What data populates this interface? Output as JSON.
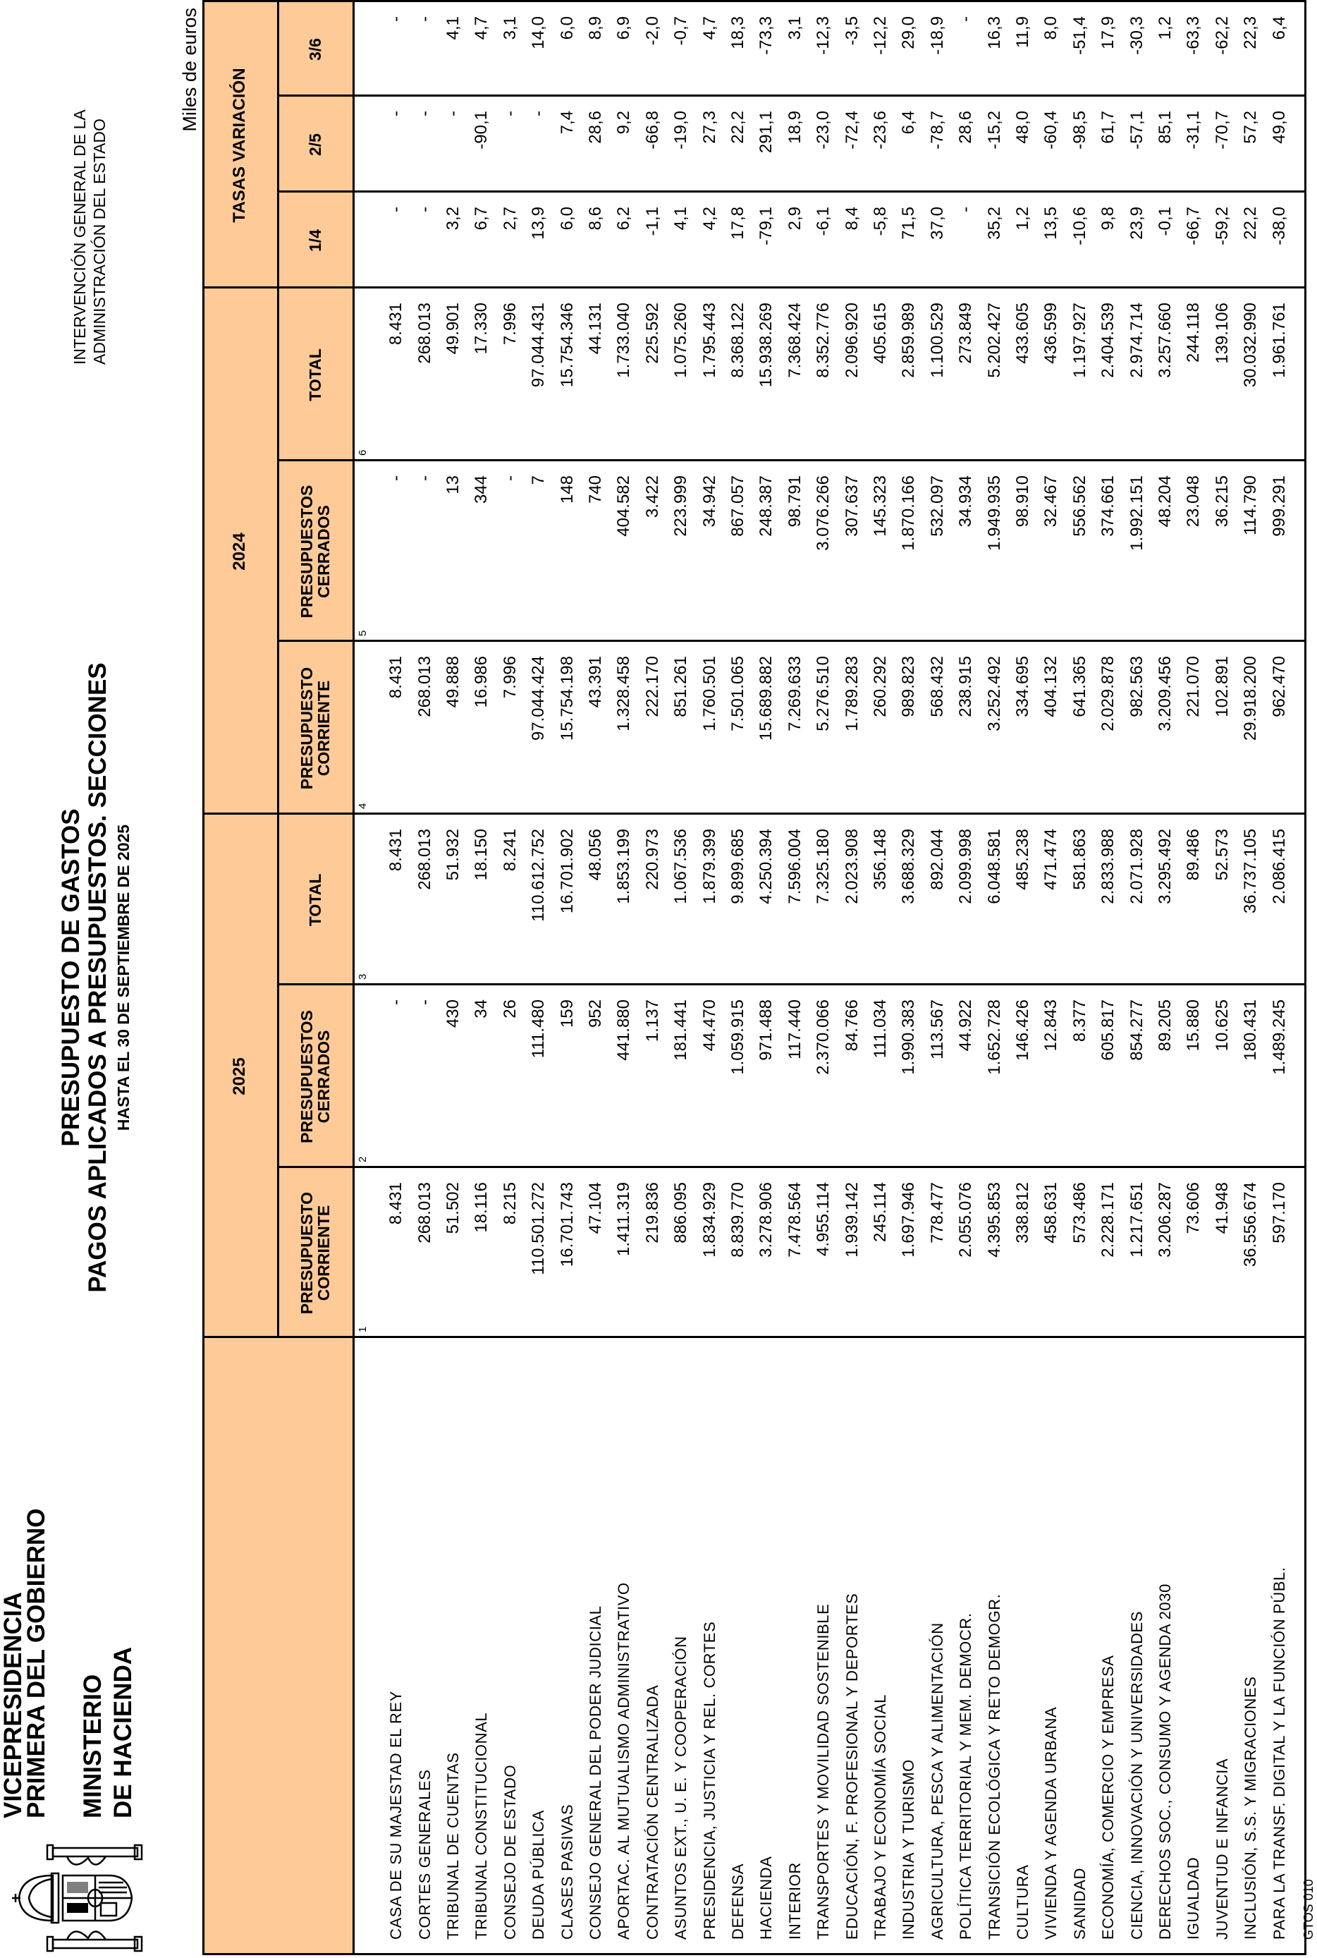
{
  "header": {
    "logo": "escudo-de-espana",
    "vicepresidencia": [
      "VICEPRESIDENCIA",
      "PRIMERA DEL GOBIERNO"
    ],
    "ministerio": [
      "MINISTERIO",
      "DE HACIENDA"
    ],
    "title": "PRESUPUESTO DE GASTOS",
    "subtitle": "PAGOS APLICADOS A PRESUPUESTOS. SECCIONES",
    "date": "HASTA EL 30 DE SEPTIEMBRE DE 2025",
    "igae": [
      "INTERVENCIÓN GENERAL DE LA",
      "ADMINISTRACIÓN DEL ESTADO"
    ],
    "units": "Miles de euros"
  },
  "colors": {
    "header_fill": "#fdca98",
    "lines": "#000000"
  },
  "table": {
    "groups": [
      {
        "label": "2025"
      },
      {
        "label": "2024"
      },
      {
        "label": "TASAS VARIACIÓN"
      }
    ],
    "columns": [
      {
        "label": "PRESUPUESTO\nCORRIENTE",
        "number": "1"
      },
      {
        "label": "PRESUPUESTOS\nCERRADOS",
        "number": "2"
      },
      {
        "label": "TOTAL",
        "number": "3"
      },
      {
        "label": "PRESUPUESTO\nCORRIENTE",
        "number": "4"
      },
      {
        "label": "PRESUPUESTOS\nCERRADOS",
        "number": "5"
      },
      {
        "label": "TOTAL",
        "number": "6"
      },
      {
        "label": "1/4"
      },
      {
        "label": "2/5"
      },
      {
        "label": "3/6"
      }
    ],
    "rows": [
      {
        "name": "CASA DE SU MAJESTAD EL REY",
        "values": [
          "8.431",
          "-",
          "8.431",
          "8.431",
          "-",
          "8.431",
          "-",
          "-",
          "-"
        ]
      },
      {
        "name": "CORTES GENERALES",
        "values": [
          "268.013",
          "-",
          "268.013",
          "268.013",
          "-",
          "268.013",
          "-",
          "-",
          "-"
        ]
      },
      {
        "name": "TRIBUNAL DE CUENTAS",
        "values": [
          "51.502",
          "430",
          "51.932",
          "49.888",
          "13",
          "49.901",
          "3,2",
          "-",
          "4,1"
        ]
      },
      {
        "name": "TRIBUNAL CONSTITUCIONAL",
        "values": [
          "18.116",
          "34",
          "18.150",
          "16.986",
          "344",
          "17.330",
          "6,7",
          "-90,1",
          "4,7"
        ]
      },
      {
        "name": "CONSEJO DE ESTADO",
        "values": [
          "8.215",
          "26",
          "8.241",
          "7.996",
          "-",
          "7.996",
          "2,7",
          "-",
          "3,1"
        ]
      },
      {
        "name": "DEUDA PÚBLICA",
        "values": [
          "110.501.272",
          "111.480",
          "110.612.752",
          "97.044.424",
          "7",
          "97.044.431",
          "13,9",
          "-",
          "14,0"
        ]
      },
      {
        "name": "CLASES PASIVAS",
        "values": [
          "16.701.743",
          "159",
          "16.701.902",
          "15.754.198",
          "148",
          "15.754.346",
          "6,0",
          "7,4",
          "6,0"
        ]
      },
      {
        "name": "CONSEJO GENERAL DEL PODER JUDICIAL",
        "values": [
          "47.104",
          "952",
          "48.056",
          "43.391",
          "740",
          "44.131",
          "8,6",
          "28,6",
          "8,9"
        ]
      },
      {
        "name": "APORTAC. AL MUTUALISMO ADMINISTRATIVO",
        "values": [
          "1.411.319",
          "441.880",
          "1.853.199",
          "1.328.458",
          "404.582",
          "1.733.040",
          "6,2",
          "9,2",
          "6,9"
        ]
      },
      {
        "name": "CONTRATACIÓN CENTRALIZADA",
        "values": [
          "219.836",
          "1.137",
          "220.973",
          "222.170",
          "3.422",
          "225.592",
          "-1,1",
          "-66,8",
          "-2,0"
        ]
      },
      {
        "name": "ASUNTOS EXT., U. E. Y COOPERACIÓN",
        "values": [
          "886.095",
          "181.441",
          "1.067.536",
          "851.261",
          "223.999",
          "1.075.260",
          "4,1",
          "-19,0",
          "-0,7"
        ]
      },
      {
        "name": "PRESIDENCIA, JUSTICIA Y REL. CORTES",
        "values": [
          "1.834.929",
          "44.470",
          "1.879.399",
          "1.760.501",
          "34.942",
          "1.795.443",
          "4,2",
          "27,3",
          "4,7"
        ]
      },
      {
        "name": "DEFENSA",
        "values": [
          "8.839.770",
          "1.059.915",
          "9.899.685",
          "7.501.065",
          "867.057",
          "8.368.122",
          "17,8",
          "22,2",
          "18,3"
        ]
      },
      {
        "name": "HACIENDA",
        "values": [
          "3.278.906",
          "971.488",
          "4.250.394",
          "15.689.882",
          "248.387",
          "15.938.269",
          "-79,1",
          "291,1",
          "-73,3"
        ]
      },
      {
        "name": "INTERIOR",
        "values": [
          "7.478.564",
          "117.440",
          "7.596.004",
          "7.269.633",
          "98.791",
          "7.368.424",
          "2,9",
          "18,9",
          "3,1"
        ]
      },
      {
        "name": "TRANSPORTES Y MOVILIDAD SOSTENIBLE",
        "values": [
          "4.955.114",
          "2.370.066",
          "7.325.180",
          "5.276.510",
          "3.076.266",
          "8.352.776",
          "-6,1",
          "-23,0",
          "-12,3"
        ]
      },
      {
        "name": "EDUCACIÓN, F. PROFESIONAL Y DEPORTES",
        "values": [
          "1.939.142",
          "84.766",
          "2.023.908",
          "1.789.283",
          "307.637",
          "2.096.920",
          "8,4",
          "-72,4",
          "-3,5"
        ]
      },
      {
        "name": "TRABAJO Y ECONOMÍA SOCIAL",
        "values": [
          "245.114",
          "111.034",
          "356.148",
          "260.292",
          "145.323",
          "405.615",
          "-5,8",
          "-23,6",
          "-12,2"
        ]
      },
      {
        "name": "INDUSTRIA Y TURISMO",
        "values": [
          "1.697.946",
          "1.990.383",
          "3.688.329",
          "989.823",
          "1.870.166",
          "2.859.989",
          "71,5",
          "6,4",
          "29,0"
        ]
      },
      {
        "name": "AGRICULTURA, PESCA Y ALIMENTACIÓN",
        "values": [
          "778.477",
          "113.567",
          "892.044",
          "568.432",
          "532.097",
          "1.100.529",
          "37,0",
          "-78,7",
          "-18,9"
        ]
      },
      {
        "name": "POLÍTICA TERRITORIAL Y MEM. DEMOCR.",
        "values": [
          "2.055.076",
          "44.922",
          "2.099.998",
          "238.915",
          "34.934",
          "273.849",
          "-",
          "28,6",
          "-"
        ]
      },
      {
        "name": "TRANSICIÓN ECOLÓGICA Y RETO DEMOGR.",
        "values": [
          "4.395.853",
          "1.652.728",
          "6.048.581",
          "3.252.492",
          "1.949.935",
          "5.202.427",
          "35,2",
          "-15,2",
          "16,3"
        ]
      },
      {
        "name": "CULTURA",
        "values": [
          "338.812",
          "146.426",
          "485.238",
          "334.695",
          "98.910",
          "433.605",
          "1,2",
          "48,0",
          "11,9"
        ]
      },
      {
        "name": "VIVIENDA Y AGENDA URBANA",
        "values": [
          "458.631",
          "12.843",
          "471.474",
          "404.132",
          "32.467",
          "436.599",
          "13,5",
          "-60,4",
          "8,0"
        ]
      },
      {
        "name": "SANIDAD",
        "values": [
          "573.486",
          "8.377",
          "581.863",
          "641.365",
          "556.562",
          "1.197.927",
          "-10,6",
          "-98,5",
          "-51,4"
        ]
      },
      {
        "name": "ECONOMÍA, COMERCIO Y EMPRESA",
        "values": [
          "2.228.171",
          "605.817",
          "2.833.988",
          "2.029.878",
          "374.661",
          "2.404.539",
          "9,8",
          "61,7",
          "17,9"
        ]
      },
      {
        "name": "CIENCIA, INNOVACIÓN Y UNIVERSIDADES",
        "values": [
          "1.217.651",
          "854.277",
          "2.071.928",
          "982.563",
          "1.992.151",
          "2.974.714",
          "23,9",
          "-57,1",
          "-30,3"
        ]
      },
      {
        "name": "DERECHOS SOC., CONSUMO Y AGENDA 2030",
        "values": [
          "3.206.287",
          "89.205",
          "3.295.492",
          "3.209.456",
          "48.204",
          "3.257.660",
          "-0,1",
          "85,1",
          "1,2"
        ]
      },
      {
        "name": "IGUALDAD",
        "values": [
          "73.606",
          "15.880",
          "89.486",
          "221.070",
          "23.048",
          "244.118",
          "-66,7",
          "-31,1",
          "-63,3"
        ]
      },
      {
        "name": "JUVENTUD E INFANCIA",
        "values": [
          "41.948",
          "10.625",
          "52.573",
          "102.891",
          "36.215",
          "139.106",
          "-59,2",
          "-70,7",
          "-62,2"
        ]
      },
      {
        "name": "INCLUSIÓN, S.S. Y MIGRACIONES",
        "values": [
          "36.556.674",
          "180.431",
          "36.737.105",
          "29.918.200",
          "114.790",
          "30.032.990",
          "22,2",
          "57,2",
          "22,3"
        ]
      },
      {
        "name": "PARA LA TRANSF. DIGITAL Y LA FUNCIÓN PÚBL.",
        "values": [
          "597.170",
          "1.489.245",
          "2.086.415",
          "962.470",
          "999.291",
          "1.961.761",
          "-38,0",
          "49,0",
          "6,4"
        ]
      }
    ]
  },
  "footer": {
    "code": "GTOS 010"
  }
}
